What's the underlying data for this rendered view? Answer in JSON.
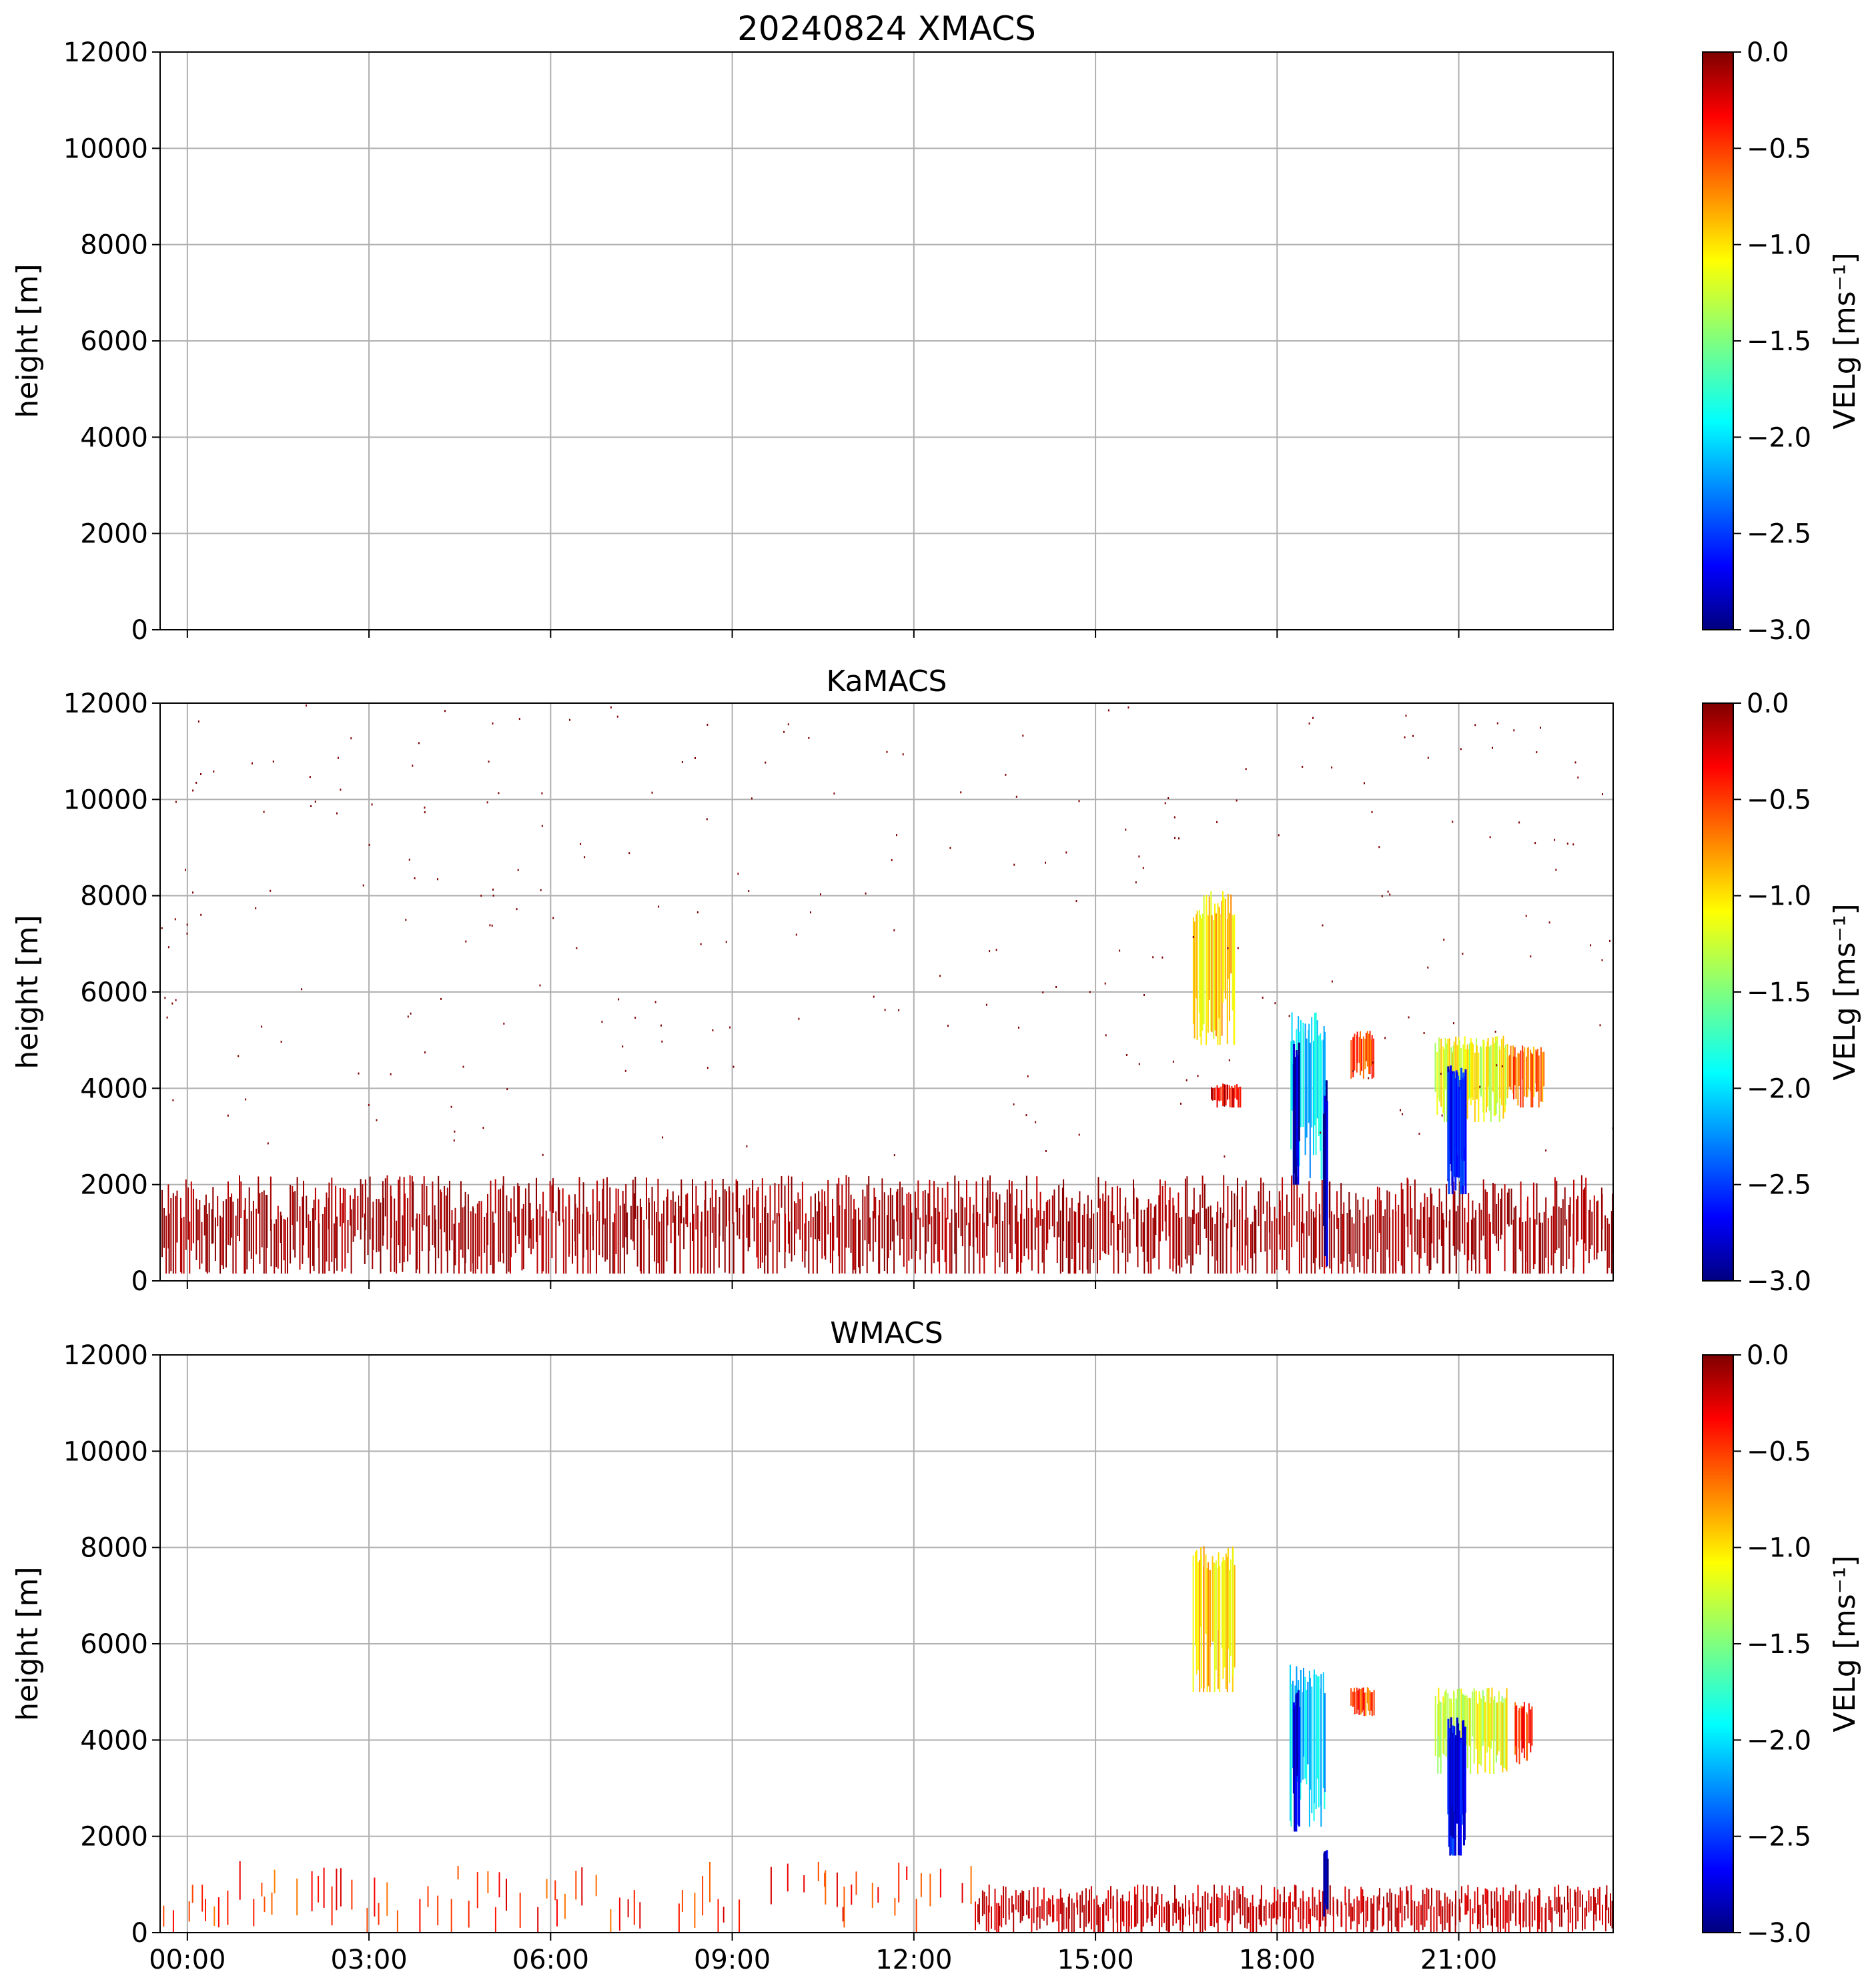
{
  "chart_data": {
    "type": "heatmap",
    "title": "20240824 XMACS",
    "colormap": "jet",
    "x_tick_labels": [
      "00:00",
      "03:00",
      "06:00",
      "09:00",
      "12:00",
      "15:00",
      "18:00",
      "21:00"
    ],
    "x_ticks_hours": [
      0,
      3,
      6,
      9,
      12,
      15,
      18,
      21
    ],
    "xlim_hours": [
      -0.45,
      23.55
    ],
    "grid": true,
    "panels": [
      {
        "name": "XMACS",
        "title": "",
        "ylabel": "height [m]",
        "ylim": [
          0,
          12000
        ],
        "y_ticks": [
          0,
          2000,
          4000,
          6000,
          8000,
          10000,
          12000
        ],
        "colorbar": {
          "label": "VELg [ms⁻¹]",
          "range": [
            -3.0,
            0.0
          ],
          "ticks": [
            "0.0",
            "−0.5",
            "−1.0",
            "−1.5",
            "−2.0",
            "−2.5",
            "−3.0"
          ]
        },
        "features": []
      },
      {
        "name": "KaMACS",
        "title": "KaMACS",
        "ylabel": "height [m]",
        "ylim": [
          0,
          12000
        ],
        "y_ticks": [
          0,
          2000,
          4000,
          6000,
          8000,
          10000,
          12000
        ],
        "colorbar": {
          "label": "VELg [ms⁻¹]",
          "range": [
            -3.0,
            0.0
          ],
          "ticks": [
            "0.0",
            "−0.5",
            "−1.0",
            "−1.5",
            "−2.0",
            "−2.5",
            "−3.0"
          ]
        },
        "features": [
          {
            "kind": "boundary_layer",
            "t_start": -0.45,
            "t_end": 23.55,
            "z_bottom": 150,
            "z_top": 2200,
            "velocity": -0.1
          },
          {
            "kind": "cloud",
            "t_start": 16.6,
            "t_end": 17.3,
            "z_bottom": 4900,
            "z_top": 8100,
            "velocity": -1.0
          },
          {
            "kind": "cloud",
            "t_start": 16.9,
            "t_end": 17.4,
            "z_bottom": 3600,
            "z_top": 4100,
            "velocity": -0.3
          },
          {
            "kind": "cloud",
            "t_start": 18.2,
            "t_end": 18.8,
            "z_bottom": 2100,
            "z_top": 5600,
            "velocity": -2.0
          },
          {
            "kind": "fallstreak",
            "t_start": 18.25,
            "t_end": 18.35,
            "z_bottom": 2000,
            "z_top": 5000,
            "velocity": -2.8
          },
          {
            "kind": "fallstreak",
            "t_start": 18.75,
            "t_end": 18.82,
            "z_bottom": 300,
            "z_top": 4200,
            "velocity": -2.9
          },
          {
            "kind": "cloud",
            "t_start": 19.2,
            "t_end": 19.6,
            "z_bottom": 4200,
            "z_top": 5200,
            "velocity": -0.6
          },
          {
            "kind": "cloud",
            "t_start": 20.6,
            "t_end": 21.8,
            "z_bottom": 3300,
            "z_top": 5100,
            "velocity": -1.2
          },
          {
            "kind": "fallstreak",
            "t_start": 20.8,
            "t_end": 21.1,
            "z_bottom": 1800,
            "z_top": 4500,
            "velocity": -2.6
          },
          {
            "kind": "cloud",
            "t_start": 21.8,
            "t_end": 22.4,
            "z_bottom": 3600,
            "z_top": 4900,
            "velocity": -0.7
          }
        ]
      },
      {
        "name": "WMACS",
        "title": "WMACS",
        "ylabel": "height [m]",
        "ylim": [
          0,
          12000
        ],
        "y_ticks": [
          0,
          2000,
          4000,
          6000,
          8000,
          10000,
          12000
        ],
        "colorbar": {
          "label": "VELg [ms⁻¹]",
          "range": [
            -3.0,
            0.0
          ],
          "ticks": [
            "0.0",
            "−0.5",
            "−1.0",
            "−1.5",
            "−2.0",
            "−2.5",
            "−3.0"
          ]
        },
        "features": [
          {
            "kind": "boundary_layer",
            "t_start": 13.0,
            "t_end": 23.55,
            "z_bottom": 0,
            "z_top": 1000,
            "velocity": -0.2
          },
          {
            "kind": "sparse_columns",
            "t_start": -0.45,
            "t_end": 13.0,
            "z_bottom": 0,
            "z_top": 1500,
            "velocity": -0.5
          },
          {
            "kind": "cloud",
            "t_start": 16.6,
            "t_end": 17.3,
            "z_bottom": 5000,
            "z_top": 8100,
            "velocity": -1.0
          },
          {
            "kind": "cloud",
            "t_start": 18.2,
            "t_end": 18.8,
            "z_bottom": 2200,
            "z_top": 5600,
            "velocity": -2.0
          },
          {
            "kind": "fallstreak",
            "t_start": 18.25,
            "t_end": 18.35,
            "z_bottom": 2100,
            "z_top": 5100,
            "velocity": -2.8
          },
          {
            "kind": "fallstreak",
            "t_start": 18.75,
            "t_end": 18.82,
            "z_bottom": 300,
            "z_top": 1800,
            "velocity": -2.9
          },
          {
            "kind": "cloud",
            "t_start": 19.2,
            "t_end": 19.6,
            "z_bottom": 4500,
            "z_top": 5100,
            "velocity": -0.6
          },
          {
            "kind": "cloud",
            "t_start": 20.6,
            "t_end": 21.8,
            "z_bottom": 3300,
            "z_top": 5100,
            "velocity": -1.2
          },
          {
            "kind": "fallstreak",
            "t_start": 20.8,
            "t_end": 21.1,
            "z_bottom": 1600,
            "z_top": 4500,
            "velocity": -2.6
          },
          {
            "kind": "cloud",
            "t_start": 21.9,
            "t_end": 22.2,
            "z_bottom": 3500,
            "z_top": 4800,
            "velocity": -0.5
          }
        ]
      }
    ]
  }
}
